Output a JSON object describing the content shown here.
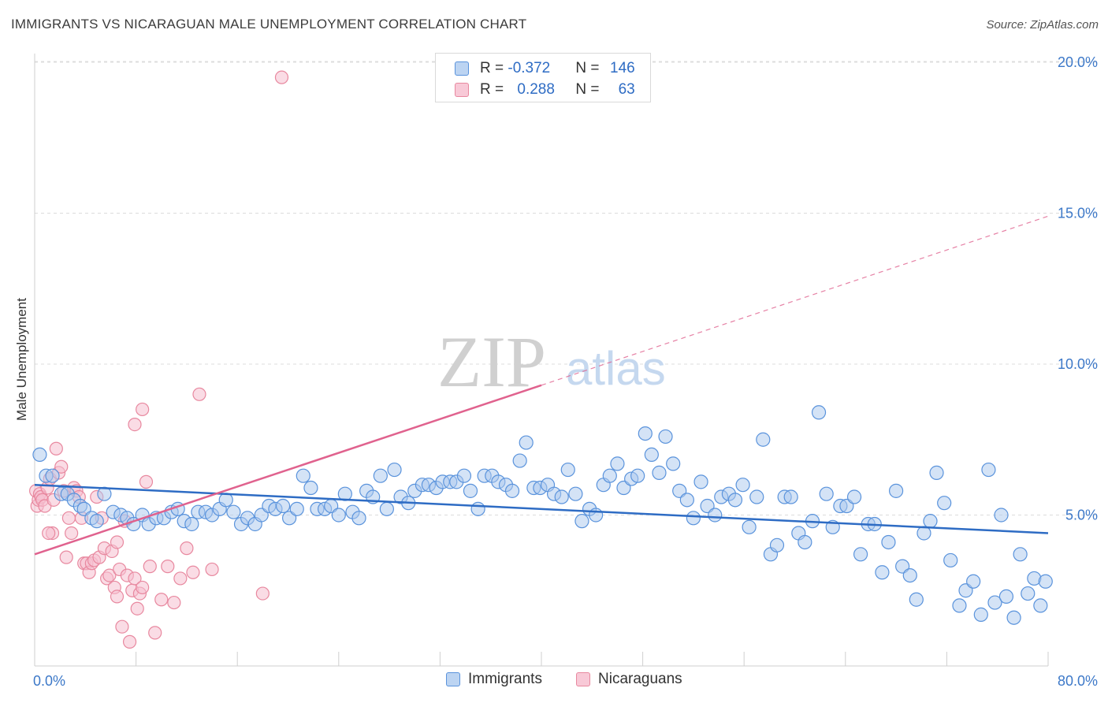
{
  "header": {
    "title": "IMMIGRANTS VS NICARAGUAN MALE UNEMPLOYMENT CORRELATION CHART",
    "source": "Source: ZipAtlas.com"
  },
  "legend": {
    "rows": [
      {
        "r_label": "R = ",
        "r_value": "-0.372",
        "n_label": "N = ",
        "n_value": "146"
      },
      {
        "r_label": "R = ",
        "r_value": "0.288",
        "n_label": "N = ",
        "n_value": "63"
      }
    ],
    "items": [
      "Immigrants",
      "Nicaraguans"
    ]
  },
  "watermark": {
    "part1": "ZIP",
    "part2": "atlas"
  },
  "colors": {
    "blue": "#2e6cc4",
    "blue_fill": "#a9c8ee",
    "blue_stroke": "#5a93dc",
    "pink": "#e0628e",
    "pink_fill": "#f6bfd0",
    "pink_stroke": "#e8889f",
    "grid": "#dcdcdc",
    "axis_label": "#3c78c8"
  },
  "chart_data": {
    "type": "scatter",
    "title": "IMMIGRANTS VS NICARAGUAN MALE UNEMPLOYMENT CORRELATION CHART",
    "xlabel": "",
    "ylabel": "Male Unemployment",
    "xlim": [
      0,
      80
    ],
    "ylim": [
      0,
      20.5
    ],
    "x_tick_labels": [
      "0.0%",
      "80.0%"
    ],
    "y_tick_labels": [
      "5.0%",
      "10.0%",
      "15.0%",
      "20.0%"
    ],
    "y_ticks": [
      5,
      10,
      15,
      20
    ],
    "grid": true,
    "legend_position": "top-center",
    "series": [
      {
        "name": "Immigrants",
        "R": -0.372,
        "N": 146,
        "trend": {
          "x0": 0,
          "y0": 6.0,
          "x1": 80,
          "y1": 4.4
        },
        "points": [
          [
            0.4,
            7.0
          ],
          [
            0.9,
            6.3
          ],
          [
            1.4,
            6.3
          ],
          [
            2.1,
            5.7
          ],
          [
            2.6,
            5.7
          ],
          [
            3.1,
            5.5
          ],
          [
            3.6,
            5.3
          ],
          [
            3.9,
            5.2
          ],
          [
            4.5,
            4.9
          ],
          [
            4.9,
            4.8
          ],
          [
            5.5,
            5.7
          ],
          [
            6.2,
            5.1
          ],
          [
            6.8,
            5.0
          ],
          [
            7.3,
            4.9
          ],
          [
            7.8,
            4.7
          ],
          [
            8.5,
            5.0
          ],
          [
            9.0,
            4.7
          ],
          [
            9.6,
            4.9
          ],
          [
            10.2,
            4.9
          ],
          [
            10.8,
            5.1
          ],
          [
            11.3,
            5.2
          ],
          [
            11.8,
            4.8
          ],
          [
            12.4,
            4.7
          ],
          [
            12.9,
            5.1
          ],
          [
            13.5,
            5.1
          ],
          [
            14.0,
            5.0
          ],
          [
            14.6,
            5.2
          ],
          [
            15.1,
            5.5
          ],
          [
            15.7,
            5.1
          ],
          [
            16.3,
            4.7
          ],
          [
            16.8,
            4.9
          ],
          [
            17.4,
            4.7
          ],
          [
            17.9,
            5.0
          ],
          [
            18.5,
            5.3
          ],
          [
            19.0,
            5.2
          ],
          [
            19.6,
            5.3
          ],
          [
            20.1,
            4.9
          ],
          [
            20.7,
            5.2
          ],
          [
            21.2,
            6.3
          ],
          [
            21.8,
            5.9
          ],
          [
            22.3,
            5.2
          ],
          [
            22.9,
            5.2
          ],
          [
            23.4,
            5.3
          ],
          [
            24.0,
            5.0
          ],
          [
            24.5,
            5.7
          ],
          [
            25.1,
            5.1
          ],
          [
            25.6,
            4.9
          ],
          [
            26.2,
            5.8
          ],
          [
            26.7,
            5.6
          ],
          [
            27.3,
            6.3
          ],
          [
            27.8,
            5.2
          ],
          [
            28.4,
            6.5
          ],
          [
            28.9,
            5.6
          ],
          [
            29.5,
            5.4
          ],
          [
            30.0,
            5.8
          ],
          [
            30.6,
            6.0
          ],
          [
            31.1,
            6.0
          ],
          [
            31.7,
            5.9
          ],
          [
            32.2,
            6.1
          ],
          [
            32.8,
            6.1
          ],
          [
            33.3,
            6.1
          ],
          [
            33.9,
            6.3
          ],
          [
            34.4,
            5.8
          ],
          [
            35.0,
            5.2
          ],
          [
            35.5,
            6.3
          ],
          [
            36.1,
            6.3
          ],
          [
            36.6,
            6.1
          ],
          [
            37.2,
            6.0
          ],
          [
            37.7,
            5.8
          ],
          [
            38.3,
            6.8
          ],
          [
            38.8,
            7.4
          ],
          [
            39.4,
            5.9
          ],
          [
            39.9,
            5.9
          ],
          [
            40.5,
            6.0
          ],
          [
            41.0,
            5.7
          ],
          [
            41.6,
            5.6
          ],
          [
            42.1,
            6.5
          ],
          [
            42.7,
            5.7
          ],
          [
            43.2,
            4.8
          ],
          [
            43.8,
            5.2
          ],
          [
            44.3,
            5.0
          ],
          [
            44.9,
            6.0
          ],
          [
            45.4,
            6.3
          ],
          [
            46.0,
            6.7
          ],
          [
            46.5,
            5.9
          ],
          [
            47.1,
            6.2
          ],
          [
            47.6,
            6.3
          ],
          [
            48.2,
            7.7
          ],
          [
            48.7,
            7.0
          ],
          [
            49.3,
            6.4
          ],
          [
            49.8,
            7.6
          ],
          [
            50.4,
            6.7
          ],
          [
            50.9,
            5.8
          ],
          [
            51.5,
            5.5
          ],
          [
            52.0,
            4.9
          ],
          [
            52.6,
            6.1
          ],
          [
            53.1,
            5.3
          ],
          [
            53.7,
            5.0
          ],
          [
            54.2,
            5.6
          ],
          [
            54.8,
            5.7
          ],
          [
            55.3,
            5.5
          ],
          [
            55.9,
            6.0
          ],
          [
            56.4,
            4.6
          ],
          [
            57.0,
            5.6
          ],
          [
            57.5,
            7.5
          ],
          [
            58.1,
            3.7
          ],
          [
            58.6,
            4.0
          ],
          [
            59.2,
            5.6
          ],
          [
            59.7,
            5.6
          ],
          [
            60.3,
            4.4
          ],
          [
            60.8,
            4.1
          ],
          [
            61.4,
            4.8
          ],
          [
            61.9,
            8.4
          ],
          [
            62.5,
            5.7
          ],
          [
            63.0,
            4.6
          ],
          [
            63.6,
            5.3
          ],
          [
            64.1,
            5.3
          ],
          [
            64.7,
            5.6
          ],
          [
            65.2,
            3.7
          ],
          [
            65.8,
            4.7
          ],
          [
            66.3,
            4.7
          ],
          [
            66.9,
            3.1
          ],
          [
            67.4,
            4.1
          ],
          [
            68.0,
            5.8
          ],
          [
            68.5,
            3.3
          ],
          [
            69.1,
            3.0
          ],
          [
            69.6,
            2.2
          ],
          [
            70.2,
            4.4
          ],
          [
            70.7,
            4.8
          ],
          [
            71.2,
            6.4
          ],
          [
            71.8,
            5.4
          ],
          [
            72.3,
            3.5
          ],
          [
            73.0,
            2.0
          ],
          [
            73.5,
            2.5
          ],
          [
            74.1,
            2.8
          ],
          [
            74.7,
            1.7
          ],
          [
            75.3,
            6.5
          ],
          [
            75.8,
            2.1
          ],
          [
            76.3,
            5.0
          ],
          [
            76.7,
            2.3
          ],
          [
            77.3,
            1.6
          ],
          [
            77.8,
            3.7
          ],
          [
            78.4,
            2.4
          ],
          [
            78.9,
            2.9
          ],
          [
            79.4,
            2.0
          ],
          [
            79.8,
            2.8
          ]
        ]
      },
      {
        "name": "Nicaraguans",
        "R": 0.288,
        "N": 63,
        "trend": {
          "x0": 0,
          "y0": 3.7,
          "x1": 40,
          "y1": 9.3
        },
        "trend_extrapolated": {
          "x0": 40,
          "y0": 9.3,
          "x1": 80,
          "y1": 14.9
        },
        "points": [
          [
            0.1,
            5.8
          ],
          [
            0.2,
            5.3
          ],
          [
            0.3,
            5.5
          ],
          [
            0.4,
            5.7
          ],
          [
            0.5,
            5.6
          ],
          [
            0.6,
            5.5
          ],
          [
            0.8,
            5.3
          ],
          [
            1.0,
            5.9
          ],
          [
            1.2,
            6.2
          ],
          [
            1.4,
            4.4
          ],
          [
            1.5,
            5.5
          ],
          [
            1.7,
            7.2
          ],
          [
            1.9,
            6.4
          ],
          [
            2.1,
            6.6
          ],
          [
            2.3,
            5.8
          ],
          [
            2.5,
            3.6
          ],
          [
            2.7,
            4.9
          ],
          [
            2.9,
            4.4
          ],
          [
            3.1,
            5.9
          ],
          [
            3.3,
            5.8
          ],
          [
            3.5,
            5.6
          ],
          [
            3.7,
            4.9
          ],
          [
            3.9,
            3.4
          ],
          [
            4.1,
            3.4
          ],
          [
            4.3,
            3.1
          ],
          [
            4.5,
            3.4
          ],
          [
            4.7,
            3.5
          ],
          [
            4.9,
            5.6
          ],
          [
            5.1,
            3.6
          ],
          [
            5.3,
            4.9
          ],
          [
            5.5,
            3.9
          ],
          [
            5.7,
            2.9
          ],
          [
            5.9,
            3.0
          ],
          [
            6.1,
            3.8
          ],
          [
            6.3,
            2.6
          ],
          [
            6.5,
            2.3
          ],
          [
            6.7,
            3.2
          ],
          [
            6.9,
            1.3
          ],
          [
            7.1,
            4.8
          ],
          [
            7.3,
            3.0
          ],
          [
            7.5,
            0.8
          ],
          [
            7.7,
            2.5
          ],
          [
            7.9,
            2.9
          ],
          [
            8.1,
            1.9
          ],
          [
            8.3,
            2.4
          ],
          [
            8.5,
            2.6
          ],
          [
            8.8,
            6.1
          ],
          [
            9.1,
            3.3
          ],
          [
            9.5,
            1.1
          ],
          [
            10.0,
            2.2
          ],
          [
            10.5,
            3.3
          ],
          [
            11.0,
            2.1
          ],
          [
            11.5,
            2.9
          ],
          [
            12.0,
            3.9
          ],
          [
            12.5,
            3.1
          ],
          [
            13.0,
            9.0
          ],
          [
            14.0,
            3.2
          ],
          [
            7.9,
            8.0
          ],
          [
            8.5,
            8.5
          ],
          [
            18.0,
            2.4
          ],
          [
            19.5,
            19.5
          ],
          [
            6.5,
            4.1
          ],
          [
            1.1,
            4.4
          ]
        ]
      }
    ]
  }
}
